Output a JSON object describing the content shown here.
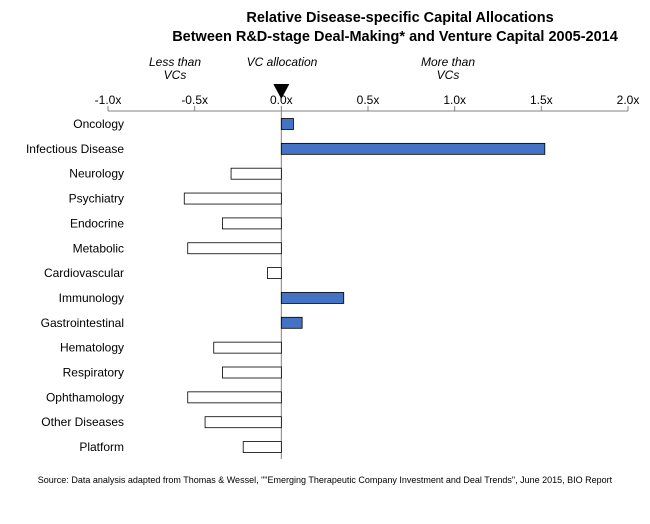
{
  "title_line1": "Relative Disease-specific Capital Allocations",
  "title_line2": "Between R&D-stage Deal-Making* and Venture Capital 2005-2014",
  "annotations": {
    "less_line1": "Less than",
    "less_line2": "VCs",
    "vc_allocation": "VC allocation",
    "more_line1": "More than",
    "more_line2": "VCs"
  },
  "source": "Source: Data analysis adapted from Thomas & Wessel, \"\"Emerging Therapeutic Company Investment and Deal Trends\", June 2015, BIO Report",
  "colors": {
    "positive": "#4472c4",
    "negative": "#ffffff",
    "bar_border": "#000000",
    "axis": "#808080",
    "marker": "#000000"
  },
  "chart_data": {
    "type": "bar",
    "orientation": "horizontal",
    "xlim": [
      -1.0,
      2.0
    ],
    "xticks": [
      -1.0,
      -0.5,
      0.0,
      0.5,
      1.0,
      1.5,
      2.0
    ],
    "xtick_labels": [
      "-1.0x",
      "-0.5x",
      "0.0x",
      "0.5x",
      "1.0x",
      "1.5x",
      "2.0x"
    ],
    "x_axis_position": "top",
    "grid": false,
    "categories": [
      "Oncology",
      "Infectious Disease",
      "Neurology",
      "Psychiatry",
      "Endocrine",
      "Metabolic",
      "Cardiovascular",
      "Immunology",
      "Gastrointestinal",
      "Hematology",
      "Respiratory",
      "Ophthamology",
      "Other Diseases",
      "Platform"
    ],
    "values": [
      0.07,
      1.52,
      -0.29,
      -0.56,
      -0.34,
      -0.54,
      -0.08,
      0.36,
      0.12,
      -0.39,
      -0.34,
      -0.54,
      -0.44,
      -0.22
    ]
  }
}
